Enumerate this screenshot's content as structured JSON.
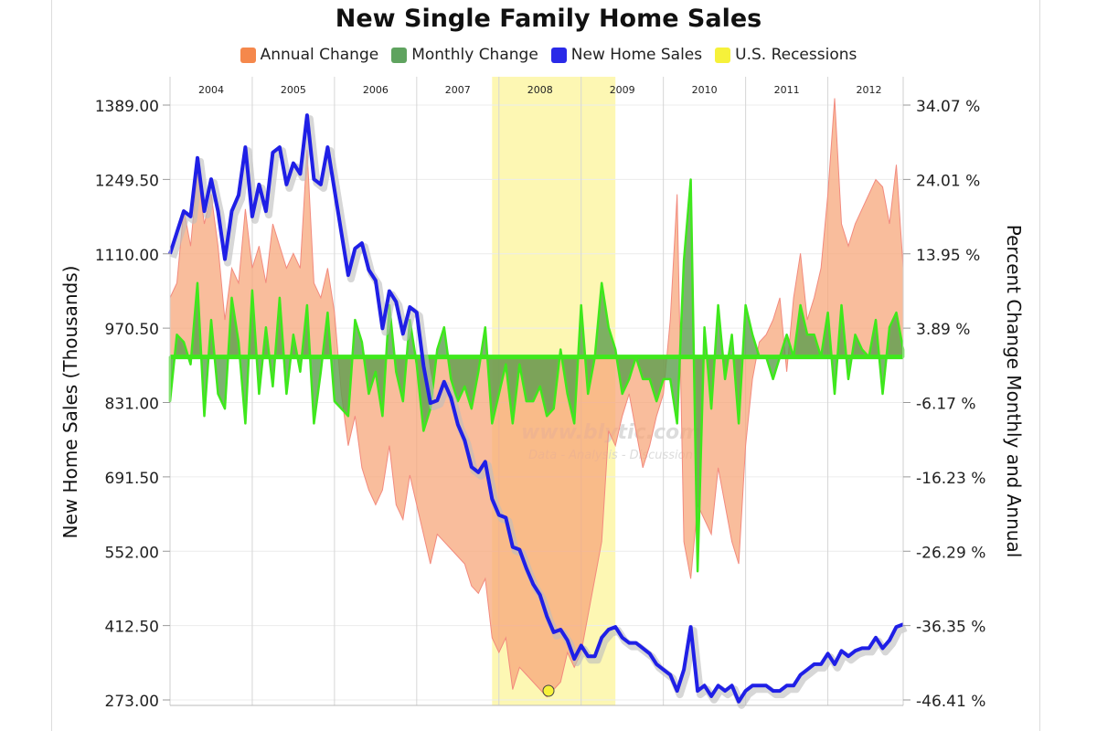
{
  "chart_data": {
    "type": "line",
    "title": "New Single Family Home Sales",
    "ylabel": "New Home Sales (Thousands)",
    "ylabel_right": "Percent Change Monthly and Annual",
    "ylim": [
      273.0,
      1389.0
    ],
    "ylim_right": [
      -46.41,
      34.07
    ],
    "y_ticks": [
      "1389.00",
      "1249.50",
      "1110.00",
      "970.50",
      "831.00",
      "691.50",
      "552.00",
      "412.50",
      "273.00"
    ],
    "y_ticks_right": [
      "34.07 %",
      "24.01 %",
      "13.95 %",
      "3.89 %",
      "-6.17 %",
      "-16.23 %",
      "-26.29 %",
      "-36.35 %",
      "-46.41 %"
    ],
    "x_start": "2004-01",
    "year_labels": [
      "2004",
      "2005",
      "2006",
      "2007",
      "2008",
      "2009",
      "2010",
      "2011",
      "2012"
    ],
    "legend": [
      {
        "name": "Annual Change",
        "color": "#f5884c"
      },
      {
        "name": "Monthly Change",
        "color": "#5fa35f"
      },
      {
        "name": "New Home Sales",
        "color": "#2a2ae8"
      },
      {
        "name": "U.S. Recessions",
        "color": "#f6f13a"
      }
    ],
    "recession": {
      "start": "2007-12",
      "end": "2009-06"
    },
    "watermark": [
      "www.blytic.com",
      "Data - Analysis - Discussion"
    ],
    "series": [
      {
        "name": "New Home Sales",
        "unit": "Thousands",
        "color": "#2020e0",
        "values": [
          1110,
          1150,
          1190,
          1180,
          1290,
          1190,
          1250,
          1190,
          1100,
          1190,
          1220,
          1310,
          1180,
          1240,
          1190,
          1300,
          1310,
          1240,
          1280,
          1260,
          1370,
          1250,
          1240,
          1310,
          1230,
          1150,
          1070,
          1120,
          1130,
          1080,
          1060,
          970,
          1040,
          1020,
          960,
          1010,
          1000,
          900,
          830,
          835,
          870,
          840,
          790,
          760,
          710,
          700,
          720,
          650,
          620,
          615,
          560,
          555,
          520,
          490,
          470,
          430,
          400,
          405,
          385,
          350,
          375,
          355,
          355,
          390,
          405,
          410,
          390,
          380,
          380,
          370,
          360,
          340,
          330,
          320,
          290,
          330,
          410,
          290,
          300,
          280,
          300,
          290,
          300,
          270,
          290,
          300,
          300,
          300,
          290,
          290,
          300,
          300,
          320,
          330,
          340,
          340,
          360,
          340,
          365,
          355,
          365,
          370,
          370,
          390,
          370,
          385,
          410,
          415
        ]
      },
      {
        "name": "Annual Change",
        "unit": "%",
        "color": "#f5884c",
        "values": [
          8,
          10,
          20,
          15,
          25,
          18,
          22,
          15,
          5,
          12,
          10,
          20,
          12,
          15,
          10,
          18,
          15,
          12,
          14,
          12,
          28,
          10,
          8,
          12,
          6,
          -5,
          -12,
          -8,
          -15,
          -18,
          -20,
          -18,
          -12,
          -20,
          -22,
          -16,
          -20,
          -24,
          -28,
          -24,
          -25,
          -26,
          -27,
          -28,
          -31,
          -32,
          -30,
          -38,
          -40,
          -38,
          -45,
          -42,
          -43,
          -44,
          -45,
          -46,
          -45,
          -44,
          -40,
          -42,
          -40,
          -35,
          -30,
          -25,
          -10,
          -12,
          -8,
          -5,
          -10,
          -15,
          -12,
          -8,
          -5,
          5,
          22,
          -25,
          -30,
          -20,
          -22,
          -24,
          -15,
          -20,
          -25,
          -28,
          -12,
          -3,
          2,
          3,
          5,
          8,
          -2,
          8,
          14,
          5,
          8,
          12,
          22,
          35,
          18,
          15,
          18,
          20,
          22,
          24,
          23,
          18,
          26,
          12
        ]
      },
      {
        "name": "Monthly Change",
        "unit": "%",
        "color": "#44dd22",
        "values": [
          -6,
          3,
          2,
          -1,
          10,
          -8,
          5,
          -5,
          -7,
          8,
          2,
          -9,
          9,
          -5,
          4,
          -4,
          8,
          -5,
          3,
          -2,
          7,
          -9,
          -2,
          6,
          -6,
          -7,
          -8,
          5,
          2,
          -5,
          -2,
          -8,
          7,
          -2,
          -6,
          5,
          -1,
          -10,
          -7,
          1,
          4,
          -3,
          -6,
          -4,
          -7,
          -2,
          4,
          -9,
          -5,
          -1,
          -9,
          -1,
          -6,
          -6,
          -4,
          -8,
          -7,
          1,
          -5,
          -9,
          7,
          -5,
          0,
          10,
          4,
          1,
          -5,
          -3,
          0,
          -3,
          -3,
          -6,
          -3,
          -3,
          -9,
          13,
          24,
          -29,
          4,
          -7,
          7,
          -3,
          3,
          -9,
          7,
          3,
          0,
          0,
          -3,
          0,
          3,
          0,
          7,
          3,
          3,
          0,
          6,
          -5,
          7,
          -3,
          3,
          1,
          0,
          5,
          -5,
          4,
          6,
          1
        ]
      }
    ]
  }
}
